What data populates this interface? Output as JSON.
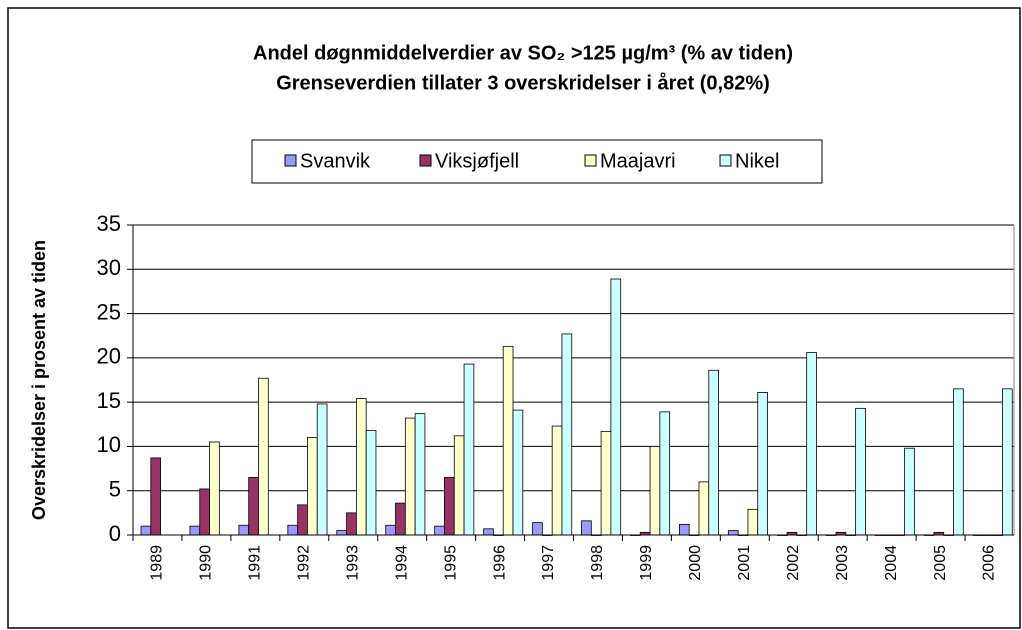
{
  "chart_data": {
    "type": "bar",
    "title": "Andel døgnmiddelverdier av SO₂ >125 µg/m³  (% av tiden)",
    "subtitle": "Grenseverdien tillater 3 overskridelser i året (0,82%)",
    "y_label": "Overskridelser i prosent av tiden",
    "categories": [
      "1989",
      "1990",
      "1991",
      "1992",
      "1993",
      "1994",
      "1995",
      "1996",
      "1997",
      "1998",
      "1999",
      "2000",
      "2001",
      "2002",
      "2003",
      "2004",
      "2005",
      "2006"
    ],
    "series": [
      {
        "name": "Svanvik",
        "color": "#9999ff",
        "values": [
          1.0,
          1.0,
          1.1,
          1.1,
          0.5,
          1.1,
          1.0,
          0.7,
          1.4,
          1.6,
          0,
          1.2,
          0.5,
          0,
          0,
          0,
          0,
          0
        ]
      },
      {
        "name": "Viksjøfjell",
        "color": "#993366",
        "values": [
          8.7,
          5.2,
          6.5,
          3.4,
          2.5,
          3.6,
          6.5,
          0,
          0,
          0,
          0.3,
          0,
          0,
          0.3,
          0.3,
          0,
          0.3,
          0
        ]
      },
      {
        "name": "Maajavri",
        "color": "#ffffcc",
        "values": [
          null,
          10.5,
          17.7,
          11.0,
          15.4,
          13.2,
          11.2,
          21.3,
          12.3,
          11.7,
          10.0,
          6.0,
          2.9,
          0,
          0,
          0,
          0,
          0
        ]
      },
      {
        "name": "Nikel",
        "color": "#ccffff",
        "values": [
          null,
          null,
          null,
          14.8,
          11.8,
          13.7,
          19.3,
          14.1,
          22.7,
          28.9,
          13.9,
          18.6,
          16.1,
          20.6,
          14.3,
          9.8,
          16.5,
          16.5
        ]
      }
    ],
    "ylim": [
      0,
      35
    ],
    "yticks": [
      0,
      5,
      10,
      15,
      20,
      25,
      30,
      35
    ],
    "grid": true
  }
}
